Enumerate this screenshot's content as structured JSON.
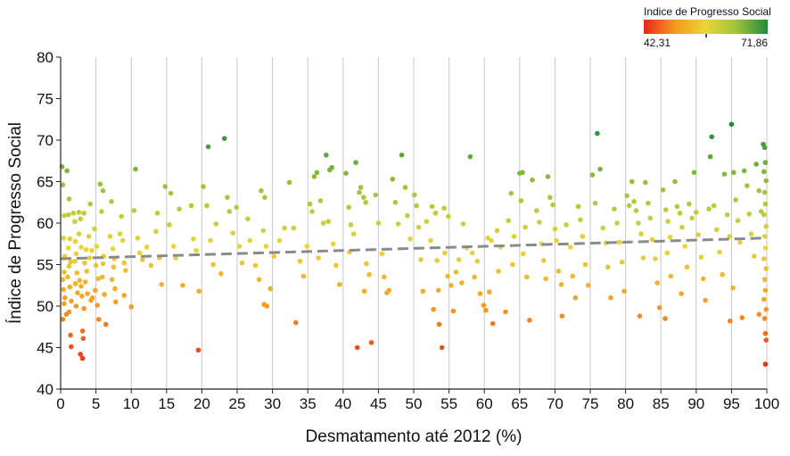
{
  "chart_data": {
    "type": "scatter",
    "title": "",
    "xlabel": "Desmatamento até 2012 (%)",
    "ylabel": "Índice de Progresso Social",
    "xlim": [
      0,
      100
    ],
    "ylim": [
      40,
      80
    ],
    "x_ticks": [
      "0",
      "5",
      "10",
      "15",
      "20",
      "25",
      "30",
      "35",
      "40",
      "45",
      "50",
      "55",
      "60",
      "65",
      "70",
      "75",
      "80",
      "85",
      "90",
      "95",
      "100"
    ],
    "y_ticks": [
      "40",
      "45",
      "50",
      "55",
      "60",
      "65",
      "70",
      "75",
      "80"
    ],
    "grid": "vertical",
    "trendline": {
      "style": "dashed",
      "color": "#8a8a8a",
      "x": [
        0,
        100
      ],
      "y": [
        55.7,
        58.2
      ]
    },
    "legend": {
      "title": "Indice de Progresso Social",
      "min_label": "42,31",
      "max_label": "71,86",
      "min": 42.31,
      "max": 71.86,
      "colors": [
        "#e8261c",
        "#f39a21",
        "#e9d53a",
        "#9dc33b",
        "#1f8a3e"
      ],
      "placement": "top-right"
    },
    "points": [
      [
        0.2,
        66.8
      ],
      [
        0.3,
        64.6
      ],
      [
        0.5,
        60.9
      ],
      [
        0.4,
        58.2
      ],
      [
        0.6,
        56.0
      ],
      [
        0.5,
        54.1
      ],
      [
        0.3,
        53.2
      ],
      [
        0.4,
        52.0
      ],
      [
        0.6,
        51.0
      ],
      [
        0.5,
        50.3
      ],
      [
        0.8,
        49.0
      ],
      [
        0.3,
        48.4
      ],
      [
        0.9,
        66.3
      ],
      [
        1.2,
        62.9
      ],
      [
        1.1,
        61.0
      ],
      [
        1.3,
        58.1
      ],
      [
        1.1,
        57.0
      ],
      [
        1.4,
        55.3
      ],
      [
        1.2,
        54.8
      ],
      [
        1.0,
        53.5
      ],
      [
        1.3,
        52.3
      ],
      [
        1.5,
        50.6
      ],
      [
        1.2,
        49.3
      ],
      [
        1.4,
        46.5
      ],
      [
        1.5,
        45.1
      ],
      [
        1.8,
        61.2
      ],
      [
        2.0,
        60.2
      ],
      [
        2.1,
        57.8
      ],
      [
        2.2,
        56.3
      ],
      [
        2.0,
        55.4
      ],
      [
        2.3,
        54.0
      ],
      [
        2.1,
        52.7
      ],
      [
        2.4,
        51.6
      ],
      [
        2.2,
        50.0
      ],
      [
        2.6,
        61.3
      ],
      [
        2.8,
        60.5
      ],
      [
        2.6,
        58.7
      ],
      [
        2.9,
        57.1
      ],
      [
        2.7,
        53.1
      ],
      [
        2.9,
        52.4
      ],
      [
        3.0,
        51.2
      ],
      [
        2.8,
        44.2
      ],
      [
        3.1,
        43.7
      ],
      [
        3.2,
        46.1
      ],
      [
        3.1,
        47.0
      ],
      [
        3.3,
        61.2
      ],
      [
        3.6,
        56.8
      ],
      [
        3.4,
        55.2
      ],
      [
        3.7,
        54.2
      ],
      [
        3.5,
        52.9
      ],
      [
        3.8,
        51.5
      ],
      [
        3.3,
        49.7
      ],
      [
        4.2,
        62.3
      ],
      [
        4.0,
        58.4
      ],
      [
        4.4,
        56.7
      ],
      [
        4.1,
        55.8
      ],
      [
        4.5,
        51.0
      ],
      [
        4.3,
        50.7
      ],
      [
        4.8,
        59.3
      ],
      [
        5.1,
        57.2
      ],
      [
        5.0,
        54.9
      ],
      [
        5.3,
        53.3
      ],
      [
        4.9,
        51.9
      ],
      [
        5.2,
        50.1
      ],
      [
        5.4,
        48.4
      ],
      [
        5.6,
        64.7
      ],
      [
        6.0,
        63.9
      ],
      [
        5.8,
        61.4
      ],
      [
        6.1,
        56.0
      ],
      [
        6.0,
        55.1
      ],
      [
        5.9,
        53.5
      ],
      [
        6.2,
        51.4
      ],
      [
        6.4,
        47.8
      ],
      [
        7.2,
        62.6
      ],
      [
        7.0,
        58.4
      ],
      [
        7.4,
        56.9
      ],
      [
        7.6,
        55.7
      ],
      [
        7.5,
        54.7
      ],
      [
        7.3,
        53.2
      ],
      [
        7.7,
        52.1
      ],
      [
        7.8,
        50.5
      ],
      [
        8.6,
        60.8
      ],
      [
        8.4,
        58.7
      ],
      [
        8.8,
        57.9
      ],
      [
        9.0,
        55.2
      ],
      [
        9.2,
        54.3
      ],
      [
        9.0,
        51.3
      ],
      [
        10.0,
        49.9
      ],
      [
        10.6,
        66.5
      ],
      [
        10.4,
        61.5
      ],
      [
        10.9,
        58.2
      ],
      [
        11.2,
        56.4
      ],
      [
        11.6,
        55.6
      ],
      [
        12.2,
        57.1
      ],
      [
        12.8,
        54.9
      ],
      [
        13.7,
        61.2
      ],
      [
        13.5,
        59.0
      ],
      [
        14.0,
        55.8
      ],
      [
        14.3,
        52.6
      ],
      [
        14.8,
        64.4
      ],
      [
        15.6,
        63.6
      ],
      [
        15.4,
        59.8
      ],
      [
        16.0,
        57.2
      ],
      [
        16.3,
        55.8
      ],
      [
        16.8,
        61.7
      ],
      [
        17.3,
        52.5
      ],
      [
        18.5,
        62.1
      ],
      [
        18.8,
        58.1
      ],
      [
        19.2,
        56.7
      ],
      [
        19.6,
        51.8
      ],
      [
        19.5,
        44.7
      ],
      [
        20.2,
        64.4
      ],
      [
        20.9,
        69.2
      ],
      [
        20.7,
        62.1
      ],
      [
        21.2,
        57.9
      ],
      [
        21.6,
        55.0
      ],
      [
        22.0,
        59.9
      ],
      [
        22.7,
        53.9
      ],
      [
        23.2,
        70.2
      ],
      [
        23.6,
        63.1
      ],
      [
        23.9,
        61.4
      ],
      [
        24.4,
        58.8
      ],
      [
        24.9,
        61.9
      ],
      [
        25.3,
        57.2
      ],
      [
        25.7,
        55.2
      ],
      [
        26.5,
        60.5
      ],
      [
        26.8,
        57.9
      ],
      [
        27.6,
        54.9
      ],
      [
        28.1,
        53.2
      ],
      [
        28.4,
        63.9
      ],
      [
        28.9,
        63.1
      ],
      [
        28.7,
        59.1
      ],
      [
        29.1,
        57.2
      ],
      [
        29.7,
        52.1
      ],
      [
        28.8,
        50.2
      ],
      [
        29.2,
        50.0
      ],
      [
        30.2,
        56.0
      ],
      [
        31.0,
        57.9
      ],
      [
        31.7,
        59.4
      ],
      [
        32.4,
        64.9
      ],
      [
        33.0,
        59.4
      ],
      [
        33.3,
        48.0
      ],
      [
        33.9,
        55.4
      ],
      [
        34.4,
        53.6
      ],
      [
        34.9,
        57.2
      ],
      [
        35.3,
        62.3
      ],
      [
        35.9,
        65.6
      ],
      [
        35.6,
        61.4
      ],
      [
        36.3,
        66.1
      ],
      [
        36.8,
        62.7
      ],
      [
        37.2,
        60.0
      ],
      [
        36.5,
        55.8
      ],
      [
        37.6,
        68.2
      ],
      [
        38.1,
        66.4
      ],
      [
        38.4,
        66.7
      ],
      [
        37.9,
        60.2
      ],
      [
        38.6,
        57.5
      ],
      [
        39.0,
        54.9
      ],
      [
        39.5,
        52.6
      ],
      [
        40.4,
        66.0
      ],
      [
        40.8,
        61.9
      ],
      [
        41.1,
        59.8
      ],
      [
        41.5,
        58.7
      ],
      [
        40.9,
        56.5
      ],
      [
        41.8,
        67.3
      ],
      [
        42.3,
        63.7
      ],
      [
        42.5,
        64.3
      ],
      [
        42.9,
        63.1
      ],
      [
        43.2,
        62.5
      ],
      [
        43.3,
        55.1
      ],
      [
        43.7,
        53.8
      ],
      [
        43.0,
        51.8
      ],
      [
        42.0,
        45.0
      ],
      [
        44.0,
        45.6
      ],
      [
        44.6,
        63.4
      ],
      [
        45.0,
        60.0
      ],
      [
        45.5,
        56.3
      ],
      [
        45.8,
        53.5
      ],
      [
        46.2,
        51.6
      ],
      [
        46.5,
        51.9
      ],
      [
        47.0,
        65.3
      ],
      [
        47.4,
        62.5
      ],
      [
        47.8,
        59.9
      ],
      [
        48.3,
        68.2
      ],
      [
        48.8,
        64.3
      ],
      [
        49.1,
        60.9
      ],
      [
        49.5,
        58.1
      ],
      [
        50.1,
        63.4
      ],
      [
        50.4,
        62.1
      ],
      [
        50.7,
        59.5
      ],
      [
        51.0,
        55.6
      ],
      [
        51.3,
        51.8
      ],
      [
        51.8,
        60.2
      ],
      [
        52.4,
        57.9
      ],
      [
        52.6,
        62.0
      ],
      [
        53.1,
        61.2
      ],
      [
        53.3,
        55.5
      ],
      [
        53.5,
        51.9
      ],
      [
        52.8,
        49.6
      ],
      [
        53.6,
        47.8
      ],
      [
        54.0,
        45.0
      ],
      [
        54.3,
        61.8
      ],
      [
        54.9,
        60.8
      ],
      [
        54.4,
        56.4
      ],
      [
        54.8,
        53.6
      ],
      [
        55.3,
        52.5
      ],
      [
        55.6,
        49.4
      ],
      [
        56.0,
        54.1
      ],
      [
        56.4,
        55.6
      ],
      [
        56.8,
        52.8
      ],
      [
        57.0,
        59.9
      ],
      [
        57.5,
        57.0
      ],
      [
        58.0,
        68.0
      ],
      [
        58.3,
        56.4
      ],
      [
        58.6,
        53.5
      ],
      [
        59.0,
        55.4
      ],
      [
        59.4,
        51.5
      ],
      [
        59.9,
        50.1
      ],
      [
        60.2,
        49.5
      ],
      [
        60.5,
        58.2
      ],
      [
        61.0,
        57.9
      ],
      [
        60.7,
        51.7
      ],
      [
        61.2,
        47.9
      ],
      [
        61.8,
        59.1
      ],
      [
        62.3,
        57.1
      ],
      [
        62.0,
        54.2
      ],
      [
        63.0,
        49.3
      ],
      [
        63.4,
        60.3
      ],
      [
        63.8,
        63.6
      ],
      [
        64.2,
        58.4
      ],
      [
        64.0,
        55.0
      ],
      [
        65.0,
        66.0
      ],
      [
        65.4,
        66.1
      ],
      [
        65.2,
        62.7
      ],
      [
        65.8,
        59.5
      ],
      [
        65.5,
        56.3
      ],
      [
        66.0,
        53.5
      ],
      [
        66.4,
        48.3
      ],
      [
        66.8,
        65.2
      ],
      [
        67.4,
        61.5
      ],
      [
        67.8,
        60.1
      ],
      [
        68.1,
        57.5
      ],
      [
        68.4,
        55.5
      ],
      [
        68.7,
        53.3
      ],
      [
        69.0,
        65.6
      ],
      [
        69.3,
        63.1
      ],
      [
        69.7,
        62.2
      ],
      [
        70.0,
        59.3
      ],
      [
        70.2,
        57.9
      ],
      [
        70.5,
        54.2
      ],
      [
        70.9,
        52.6
      ],
      [
        71.0,
        48.8
      ],
      [
        71.6,
        59.8
      ],
      [
        72.2,
        57.1
      ],
      [
        72.5,
        53.6
      ],
      [
        72.9,
        51.0
      ],
      [
        73.3,
        62.0
      ],
      [
        73.6,
        60.4
      ],
      [
        73.9,
        58.4
      ],
      [
        74.3,
        55.0
      ],
      [
        74.7,
        52.5
      ],
      [
        75.3,
        65.8
      ],
      [
        75.7,
        62.4
      ],
      [
        76.0,
        70.8
      ],
      [
        76.4,
        66.5
      ],
      [
        76.8,
        59.4
      ],
      [
        77.2,
        57.6
      ],
      [
        77.5,
        54.7
      ],
      [
        77.9,
        51.0
      ],
      [
        78.4,
        61.7
      ],
      [
        78.8,
        60.0
      ],
      [
        79.1,
        57.7
      ],
      [
        79.5,
        55.3
      ],
      [
        79.8,
        51.8
      ],
      [
        80.2,
        63.3
      ],
      [
        80.5,
        62.1
      ],
      [
        80.9,
        65.0
      ],
      [
        81.2,
        62.6
      ],
      [
        81.5,
        61.5
      ],
      [
        81.8,
        60.0
      ],
      [
        82.2,
        58.7
      ],
      [
        82.5,
        55.8
      ],
      [
        82.0,
        48.8
      ],
      [
        82.8,
        64.9
      ],
      [
        83.2,
        62.4
      ],
      [
        83.5,
        60.6
      ],
      [
        83.8,
        58.0
      ],
      [
        84.2,
        55.7
      ],
      [
        84.5,
        52.8
      ],
      [
        84.8,
        49.8
      ],
      [
        85.3,
        64.0
      ],
      [
        85.7,
        61.6
      ],
      [
        86.0,
        60.2
      ],
      [
        86.3,
        58.3
      ],
      [
        85.9,
        56.4
      ],
      [
        86.4,
        53.6
      ],
      [
        85.6,
        48.5
      ],
      [
        87.0,
        65.0
      ],
      [
        87.3,
        62.0
      ],
      [
        87.7,
        61.2
      ],
      [
        88.0,
        59.5
      ],
      [
        88.4,
        57.2
      ],
      [
        88.7,
        54.7
      ],
      [
        87.9,
        51.5
      ],
      [
        89.0,
        62.3
      ],
      [
        89.4,
        60.6
      ],
      [
        89.7,
        66.1
      ],
      [
        90.0,
        61.3
      ],
      [
        90.3,
        58.6
      ],
      [
        90.7,
        55.9
      ],
      [
        91.0,
        53.3
      ],
      [
        91.3,
        50.7
      ],
      [
        91.8,
        61.7
      ],
      [
        92.2,
        70.4
      ],
      [
        92.0,
        68.0
      ],
      [
        92.5,
        62.1
      ],
      [
        92.9,
        59.2
      ],
      [
        93.3,
        56.5
      ],
      [
        93.7,
        53.8
      ],
      [
        94.0,
        65.9
      ],
      [
        94.4,
        61.0
      ],
      [
        94.7,
        58.4
      ],
      [
        95.0,
        71.9
      ],
      [
        95.3,
        66.1
      ],
      [
        95.6,
        62.8
      ],
      [
        95.9,
        60.3
      ],
      [
        96.2,
        57.7
      ],
      [
        95.2,
        52.2
      ],
      [
        96.5,
        48.6
      ],
      [
        94.8,
        48.2
      ],
      [
        96.8,
        66.3
      ],
      [
        97.2,
        64.5
      ],
      [
        97.5,
        61.1
      ],
      [
        97.8,
        58.7
      ],
      [
        98.2,
        56.0
      ],
      [
        98.5,
        67.1
      ],
      [
        98.9,
        63.9
      ],
      [
        99.2,
        61.4
      ],
      [
        98.9,
        49.0
      ],
      [
        99.5,
        69.5
      ],
      [
        99.7,
        69.1
      ],
      [
        99.8,
        67.3
      ],
      [
        99.6,
        66.2
      ],
      [
        99.9,
        65.1
      ],
      [
        99.7,
        63.7
      ],
      [
        99.8,
        62.3
      ],
      [
        99.6,
        61.0
      ],
      [
        99.9,
        59.6
      ],
      [
        99.7,
        58.4
      ],
      [
        99.8,
        57.0
      ],
      [
        99.6,
        55.7
      ],
      [
        99.9,
        54.5
      ],
      [
        99.7,
        53.2
      ],
      [
        99.8,
        51.9
      ],
      [
        99.6,
        50.8
      ],
      [
        99.9,
        49.6
      ],
      [
        99.7,
        48.5
      ],
      [
        99.8,
        46.7
      ],
      [
        99.9,
        45.9
      ],
      [
        99.8,
        43.0
      ]
    ]
  }
}
